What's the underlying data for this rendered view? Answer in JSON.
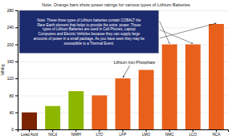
{
  "chart_data": {
    "type": "bar",
    "title": "Note: Orange bars show power ratings for various types of Lithium Batteries",
    "ylabel": "Wh/kg",
    "categories": [
      "Lead Acid",
      "NiCd",
      "NIMH",
      "LTO",
      "LFP",
      "LMO",
      "NMC",
      "LCO",
      "NCA"
    ],
    "values": [
      40,
      55,
      90,
      80,
      120,
      140,
      200,
      200,
      248
    ],
    "colors": [
      "#7B2200",
      "#8DB600",
      "#8DB600",
      "#E8601C",
      "#E8601C",
      "#E8601C",
      "#E8601C",
      "#E8601C",
      "#E8601C"
    ],
    "ylim": [
      0,
      280
    ],
    "yticks": [
      0,
      40,
      80,
      120,
      160,
      200,
      240,
      280
    ],
    "grid": true,
    "annotations": [
      {
        "text": "Lithium Iron Phosphate",
        "categories": [
          "LFP"
        ]
      },
      {
        "text": "Note: These three types of Lithium batteries contain COBALT the\nRare Earth element that helps to provide the extra  power. Those\ntypes of Lithium Batteries are used in Cell Phones, Laptop\nComputers and Electric Vehicles because they can supply large\namounts of power in a small package. As you have seen they may be\nsusceptible to a Thermal Event.",
        "categories": [
          "NMC",
          "LCO",
          "NCA"
        ]
      }
    ]
  }
}
